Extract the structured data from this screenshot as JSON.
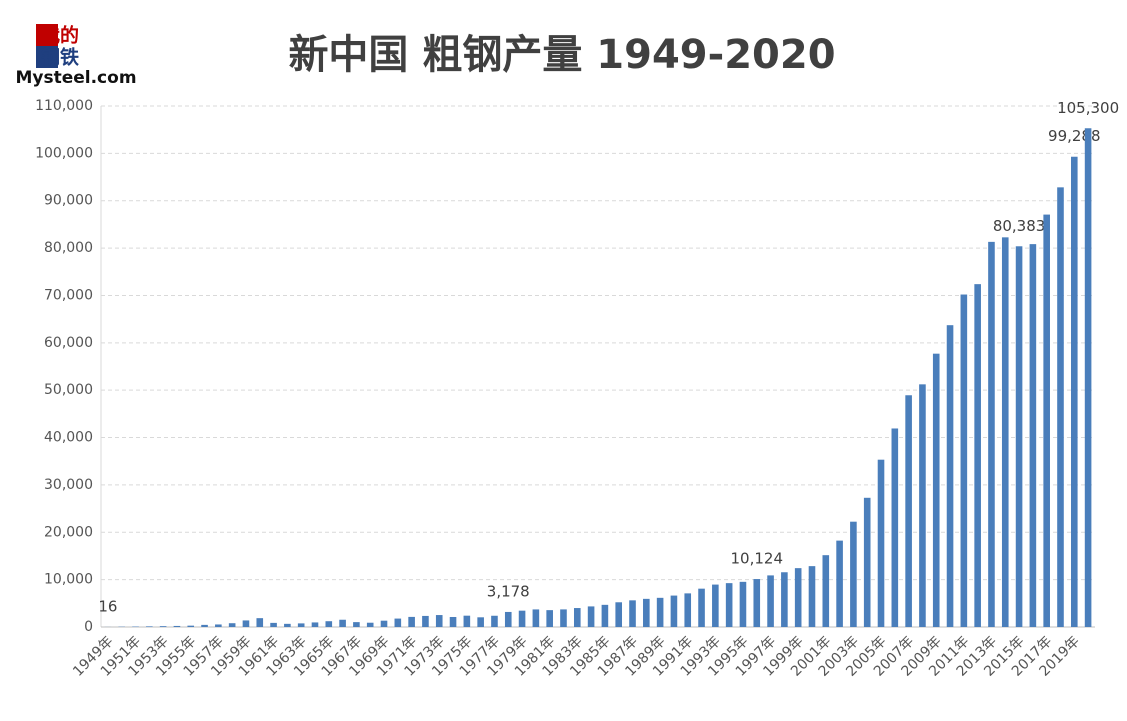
{
  "logo": {
    "line1": "我的",
    "line2": "钢铁",
    "line3": "Mysteel.com"
  },
  "chart_data": {
    "type": "bar",
    "title": "新中国 粗钢产量 1949-2020",
    "categories": [
      "1949年",
      null,
      "1951年",
      null,
      "1953年",
      null,
      "1955年",
      null,
      "1957年",
      null,
      "1959年",
      null,
      "1961年",
      null,
      "1963年",
      null,
      "1965年",
      null,
      "1967年",
      null,
      "1969年",
      null,
      "1971年",
      null,
      "1973年",
      null,
      "1975年",
      null,
      "1977年",
      null,
      "1979年",
      null,
      "1981年",
      null,
      "1983年",
      null,
      "1985年",
      null,
      "1987年",
      null,
      "1989年",
      null,
      "1991年",
      null,
      "1993年",
      null,
      "1995年",
      null,
      "1997年",
      null,
      "1999年",
      null,
      "2001年",
      null,
      "2003年",
      null,
      "2005年",
      null,
      "2007年",
      null,
      "2009年",
      null,
      "2011年",
      null,
      "2013年",
      null,
      "2015年",
      null,
      "2017年",
      null,
      "2019年",
      null
    ],
    "values": [
      16,
      61,
      90,
      135,
      177,
      223,
      285,
      447,
      535,
      800,
      1387,
      1866,
      870,
      667,
      762,
      964,
      1223,
      1532,
      1029,
      904,
      1333,
      1779,
      2132,
      2338,
      2522,
      2112,
      2390,
      2046,
      2374,
      3178,
      3448,
      3712,
      3560,
      3716,
      4002,
      4347,
      4679,
      5220,
      5628,
      5943,
      6159,
      6635,
      7100,
      8094,
      8956,
      9261,
      9536,
      10124,
      10894,
      11559,
      12426,
      12850,
      15163,
      18237,
      22234,
      27280,
      35324,
      41915,
      48929,
      51234,
      57707,
      63723,
      70197,
      72388,
      81314,
      82270,
      80383,
      80837,
      87074,
      92826,
      99288,
      105300
    ],
    "value_labels": [
      "16",
      null,
      null,
      null,
      null,
      null,
      null,
      null,
      null,
      null,
      null,
      null,
      null,
      null,
      null,
      null,
      null,
      null,
      null,
      null,
      null,
      null,
      null,
      null,
      null,
      null,
      null,
      null,
      null,
      "3,178",
      null,
      null,
      null,
      null,
      null,
      null,
      null,
      null,
      null,
      null,
      null,
      null,
      null,
      null,
      null,
      null,
      null,
      "10,124",
      null,
      null,
      null,
      null,
      null,
      null,
      null,
      null,
      null,
      null,
      null,
      null,
      null,
      null,
      null,
      null,
      null,
      null,
      "80,383",
      null,
      null,
      null,
      "99,288",
      "105,300"
    ],
    "color": "#4a7ebb",
    "ylim": [
      0,
      110000
    ],
    "yticks": [
      0,
      {
        "value": 10000,
        "label": "10,000"
      },
      {
        "value": 20000,
        "label": "20,000"
      },
      {
        "value": 30000,
        "label": "30,000"
      },
      {
        "value": 40000,
        "label": "40,000"
      },
      {
        "value": 50000,
        "label": "50,000"
      },
      {
        "value": 60000,
        "label": "60,000"
      },
      {
        "value": 70000,
        "label": "70,000"
      },
      {
        "value": 80000,
        "label": "80,000"
      },
      {
        "value": 90000,
        "label": "90,000"
      },
      {
        "value": 100000,
        "label": "100,000"
      },
      {
        "value": 110000,
        "label": "110,000"
      }
    ],
    "grid": true
  }
}
